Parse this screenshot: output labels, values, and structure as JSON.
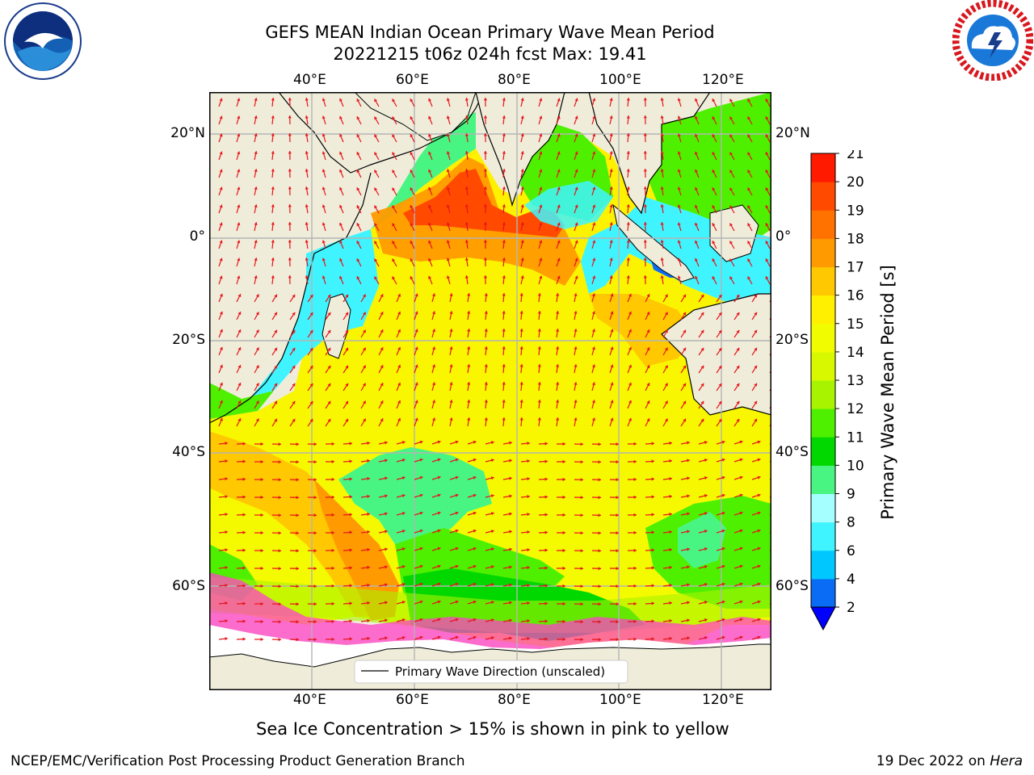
{
  "header": {
    "title_line1": "GEFS MEAN Indian Ocean Primary Wave Mean Period",
    "title_line2": "20221215 t06z 024h fcst   Max: 19.41"
  },
  "map": {
    "lon_ticks_top": [
      "40°E",
      "60°E",
      "80°E",
      "100°E",
      "120°E"
    ],
    "lon_ticks_bottom": [
      "40°E",
      "60°E",
      "80°E",
      "100°E",
      "120°E"
    ],
    "lat_ticks_left": [
      "20°N",
      "0°",
      "20°S",
      "40°S",
      "60°S"
    ],
    "lat_ticks_right": [
      "20°N",
      "0°",
      "20°S",
      "40°S",
      "60°S"
    ],
    "lon_range": [
      20,
      130
    ],
    "lat_range": [
      -75,
      27
    ],
    "gridlines": true,
    "arrow_color": "#e8141b",
    "land_color": "#efedda",
    "legend_label": "Primary Wave Direction (unscaled)",
    "legend_placement": "bottom-center"
  },
  "colorbar": {
    "label": "Primary Wave Mean Period [s]",
    "ticks": [
      "2",
      "4",
      "6",
      "8",
      "9",
      "10",
      "11",
      "12",
      "13",
      "14",
      "15",
      "16",
      "17",
      "18",
      "19",
      "20",
      "21"
    ],
    "colors": [
      "#0a6cf5",
      "#00c8ff",
      "#40f4ff",
      "#a6ffff",
      "#49f582",
      "#00d800",
      "#4ef000",
      "#a8f400",
      "#d8f800",
      "#f2fc00",
      "#fff000",
      "#ffc800",
      "#ff9a00",
      "#ff7200",
      "#ff4a00",
      "#ff1a00"
    ],
    "extend": "min"
  },
  "caption": "Sea Ice Concentration > 15% is shown in pink to yellow",
  "footer": {
    "left": "NCEP/EMC/Verification Post Processing Product Generation Branch",
    "right_prefix": "19 Dec 2022 on ",
    "right_host": "Hera"
  },
  "logos": {
    "left": "noaa-logo",
    "right": "nws-logo"
  }
}
